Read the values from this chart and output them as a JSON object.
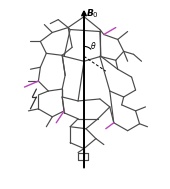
{
  "bg_color": "#ffffff",
  "molecule_color": "#4a4a4a",
  "purple_color": "#bb44bb",
  "b0_label": "B",
  "b0_sub": "0",
  "theta_label": "θ",
  "fig_width": 1.7,
  "fig_height": 1.89,
  "dpi": 100,
  "lw": 0.85
}
